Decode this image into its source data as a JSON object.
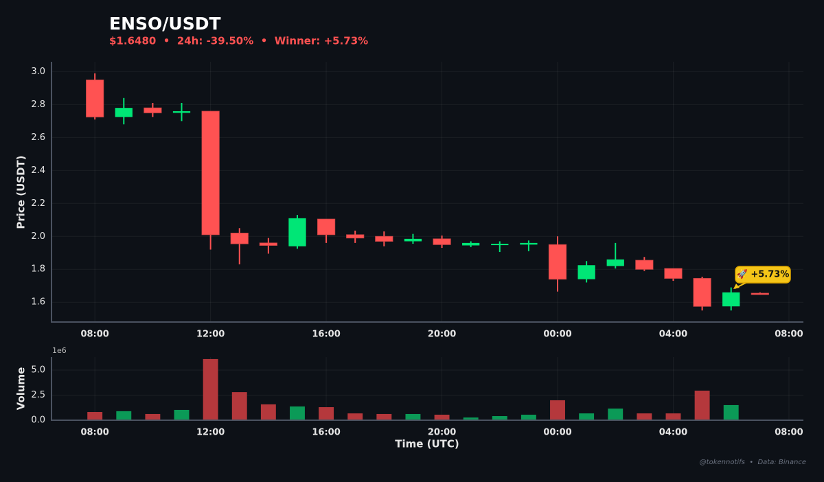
{
  "chart_data": [
    {
      "type": "candlestick",
      "title": "ENSO/USDT",
      "subtitle": "$1.6480  •  24h: -39.50%  •  Winner: +5.73%",
      "y_label": "Price (USDT)",
      "x": [
        8,
        9,
        10,
        11,
        12,
        13,
        14,
        15,
        16,
        17,
        18,
        19,
        20,
        21,
        22,
        23,
        24,
        25,
        26,
        27,
        28,
        29,
        30,
        31
      ],
      "open": [
        2.95,
        2.725,
        2.78,
        2.75,
        2.76,
        2.02,
        1.96,
        1.94,
        2.105,
        2.01,
        2.0,
        1.97,
        1.985,
        1.945,
        1.95,
        1.95,
        1.95,
        1.74,
        1.82,
        1.855,
        1.805,
        1.745,
        1.575,
        1.655
      ],
      "high": [
        2.99,
        2.84,
        2.81,
        2.81,
        2.76,
        2.05,
        1.99,
        2.13,
        2.105,
        2.035,
        2.03,
        2.015,
        2.005,
        1.97,
        1.97,
        1.975,
        2.0,
        1.85,
        1.96,
        1.875,
        1.805,
        1.755,
        1.69,
        1.66
      ],
      "low": [
        2.71,
        2.68,
        2.725,
        2.7,
        1.92,
        1.83,
        1.895,
        1.925,
        1.96,
        1.96,
        1.94,
        1.955,
        1.93,
        1.935,
        1.905,
        1.91,
        1.665,
        1.72,
        1.805,
        1.79,
        1.73,
        1.55,
        1.55,
        1.648
      ],
      "close": [
        2.725,
        2.78,
        2.75,
        2.76,
        2.01,
        1.955,
        1.945,
        2.11,
        2.01,
        1.99,
        1.97,
        1.985,
        1.95,
        1.96,
        1.955,
        1.96,
        1.74,
        1.825,
        1.86,
        1.8,
        1.745,
        1.575,
        1.66,
        1.648
      ],
      "up_color": "#00e676",
      "down_color": "#ff5252",
      "xlim": [
        6.5,
        32.5
      ],
      "xticks": [
        {
          "value": 8,
          "label": "08:00"
        },
        {
          "value": 12,
          "label": "12:00"
        },
        {
          "value": 16,
          "label": "16:00"
        },
        {
          "value": 20,
          "label": "20:00"
        },
        {
          "value": 24,
          "label": "00:00"
        },
        {
          "value": 28,
          "label": "04:00"
        },
        {
          "value": 32,
          "label": "08:00"
        }
      ],
      "ylim": [
        1.48,
        3.06
      ],
      "yticks": [
        1.6,
        1.8,
        {
          "value": 2,
          "label": "2.0"
        },
        2.2,
        2.4,
        2.6,
        2.8,
        {
          "value": 3,
          "label": "3.0"
        }
      ],
      "grid": true,
      "annotation": "🚀 +5.73%"
    },
    {
      "type": "bar",
      "y_label": "Volume",
      "x_label": "Time (UTC)",
      "y_offset_label": "1e6",
      "x": [
        8,
        9,
        10,
        11,
        12,
        13,
        14,
        15,
        16,
        17,
        18,
        19,
        20,
        21,
        22,
        23,
        24,
        25,
        26,
        27,
        28,
        29,
        30,
        31
      ],
      "values": [
        0.82,
        0.9,
        0.62,
        1.03,
        6.1,
        2.8,
        1.58,
        1.37,
        1.3,
        0.68,
        0.62,
        0.62,
        0.55,
        0.27,
        0.41,
        0.55,
        1.99,
        0.68,
        1.16,
        0.68,
        0.68,
        2.95,
        1.51,
        0.02
      ],
      "up_color": "#0b9a57",
      "down_color": "#b5383c",
      "xlim": [
        6.5,
        32.5
      ],
      "xticks": [
        {
          "value": 8,
          "label": "08:00"
        },
        {
          "value": 12,
          "label": "12:00"
        },
        {
          "value": 16,
          "label": "16:00"
        },
        {
          "value": 20,
          "label": "20:00"
        },
        {
          "value": 24,
          "label": "00:00"
        },
        {
          "value": 28,
          "label": "04:00"
        },
        {
          "value": 32,
          "label": "08:00"
        }
      ],
      "ylim": [
        0,
        6.3
      ],
      "yticks": [
        {
          "value": 0,
          "label": "0.0"
        },
        2.5,
        {
          "value": 5,
          "label": "5.0"
        }
      ],
      "grid": true
    }
  ],
  "footer": "@tokennotifs  •  Data: Binance"
}
